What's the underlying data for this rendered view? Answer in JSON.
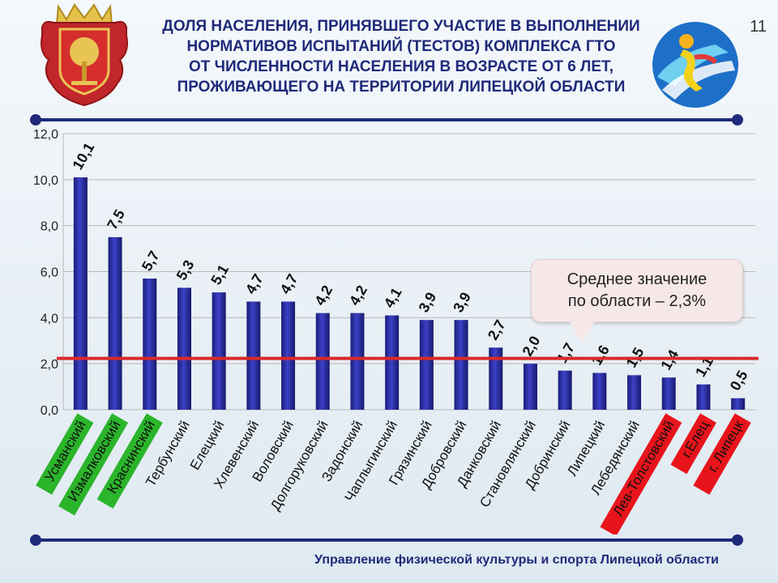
{
  "slide_number": "11",
  "title_lines": [
    "ДОЛЯ НАСЕЛЕНИЯ, ПРИНЯВШЕГО УЧАСТИЕ В ВЫПОЛНЕНИИ",
    "НОРМАТИВОВ ИСПЫТАНИЙ (ТЕСТОВ) КОМПЛЕКСА ГТО",
    "ОТ ЧИСЛЕННОСТИ НАСЕЛЕНИЯ В ВОЗРАСТЕ ОТ 6 ЛЕТ,",
    "ПРОЖИВАЮЩЕГО НА ТЕРРИТОРИИ ЛИПЕЦКОЙ ОБЛАСТИ"
  ],
  "callout_lines": [
    "Среднее значение",
    "по области – 2,3%"
  ],
  "footer": "Управление физической культуры и спорта Липецкой области",
  "colors": {
    "title": "#1f2a7a",
    "bar": "#2a2ea6",
    "average_line": "#d82a2a",
    "label_green": "#2bb52b",
    "label_red": "#e8141b"
  },
  "chart_data": {
    "type": "bar",
    "categories": [
      "Усманский",
      "Измалковский",
      "Краснинский",
      "Тербунский",
      "Елецкий",
      "Хлевенский",
      "Воловский",
      "Долгоруковский",
      "Задонский",
      "Чаплыгинский",
      "Грязинский",
      "Добровский",
      "Данковский",
      "Становлянский",
      "Добринский",
      "Липецкий",
      "Лебедянский",
      "Лев-Толстовский",
      "г.Елец",
      "г. Липецк"
    ],
    "values": [
      10.1,
      7.5,
      5.7,
      5.3,
      5.1,
      4.7,
      4.7,
      4.2,
      4.2,
      4.1,
      3.9,
      3.9,
      2.7,
      2.0,
      1.7,
      1.6,
      1.5,
      1.4,
      1.1,
      0.5
    ],
    "value_labels": [
      "10,1",
      "7,5",
      "5,7",
      "5,3",
      "5,1",
      "4,7",
      "4,7",
      "4,2",
      "4,2",
      "4,1",
      "3,9",
      "3,9",
      "2,7",
      "2,0",
      "1,7",
      "1,6",
      "1,5",
      "1,4",
      "1,1",
      "0,5"
    ],
    "highlight": [
      "green",
      "green",
      "green",
      "",
      "",
      "",
      "",
      "",
      "",
      "",
      "",
      "",
      "",
      "",
      "",
      "",
      "",
      "red",
      "red",
      "red"
    ],
    "average": 2.3,
    "ylim": [
      0,
      12
    ],
    "yticks": [
      "0,0",
      "2,0",
      "4,0",
      "6,0",
      "8,0",
      "10,0",
      "12,0"
    ],
    "grid": true
  }
}
